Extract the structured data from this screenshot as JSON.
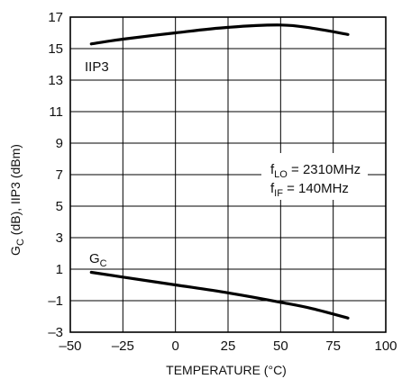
{
  "chart_data": {
    "type": "line",
    "xlabel_main": "TEMPERATURE (",
    "xlabel_unit": "°C)",
    "ylabel": {
      "g": "G",
      "g_sub": "C",
      "rest": " (dB), IIP3 (dBm)"
    },
    "xlim": [
      -50,
      100
    ],
    "ylim": [
      -3,
      17
    ],
    "x_ticks": [
      -50,
      -25,
      0,
      25,
      50,
      75,
      100
    ],
    "x_tick_labels": [
      "–50",
      "–25",
      "0",
      "25",
      "50",
      "75",
      "100"
    ],
    "y_ticks": [
      -3,
      -1,
      1,
      3,
      5,
      7,
      9,
      11,
      13,
      15,
      17
    ],
    "y_tick_labels": [
      "–3",
      "–1",
      "1",
      "3",
      "5",
      "7",
      "9",
      "11",
      "13",
      "15",
      "17"
    ],
    "grid": true,
    "series": [
      {
        "name": "IIP3",
        "x": [
          -40,
          -25,
          0,
          25,
          50,
          65,
          82
        ],
        "y": [
          15.3,
          15.6,
          16.0,
          16.35,
          16.5,
          16.3,
          15.9
        ]
      },
      {
        "name": "GC",
        "x": [
          -40,
          -25,
          0,
          25,
          50,
          65,
          82
        ],
        "y": [
          0.8,
          0.5,
          0.0,
          -0.5,
          -1.1,
          -1.5,
          -2.1
        ]
      }
    ],
    "labels": {
      "iip3": "IIP3",
      "gc_main": "G",
      "gc_sub": "C"
    },
    "conditions": [
      {
        "main": "f",
        "sub": "LO",
        "rest": " = 2310MHz"
      },
      {
        "main": "f",
        "sub": "IF",
        "rest": " = 140MHz"
      }
    ]
  }
}
